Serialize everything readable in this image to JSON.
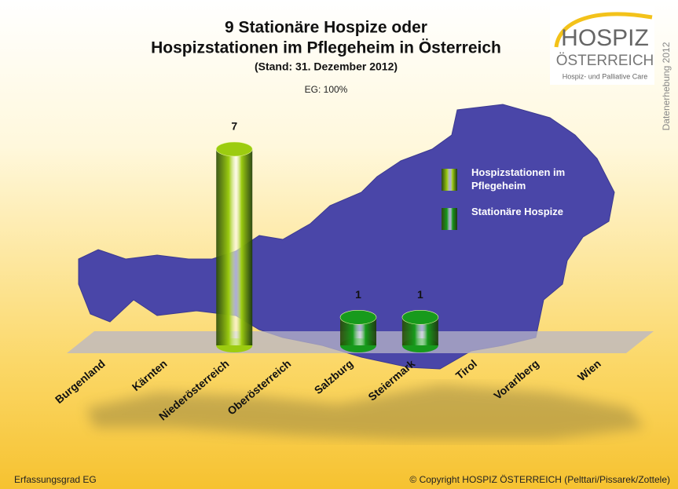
{
  "chart_data": {
    "type": "bar3d",
    "title": [
      "9 Stationäre Hospize oder",
      "Hospizstationen im Pflegeheim in Österreich"
    ],
    "subtitle": "(Stand: 31. Dezember 2012)",
    "annotation": "EG: 100%",
    "categories": [
      "Burgenland",
      "Kärnten",
      "Niederösterreich",
      "Oberösterreich",
      "Salzburg",
      "Steiermark",
      "Tirol",
      "Vorarlberg",
      "Wien"
    ],
    "series": [
      {
        "name": "Hospizstationen im Pflegeheim",
        "color": "#9ccc10",
        "values": [
          0,
          0,
          7,
          0,
          0,
          0,
          0,
          0,
          0
        ]
      },
      {
        "name": "Stationäre Hospize",
        "color": "#179a1c",
        "values": [
          0,
          0,
          0,
          0,
          1,
          1,
          0,
          0,
          0
        ]
      }
    ],
    "logo": {
      "line1": "HOSPIZ",
      "line2": "ÖSTERREICH",
      "line3": "Hospiz- und Palliative Care"
    },
    "side_note": "Datenerhebung 2012",
    "footer_left": "Erfassungsgrad EG",
    "footer_right": "© Copyright HOSPIZ ÖSTERREICH (Pelttari/Pissarek/Zottele)"
  }
}
